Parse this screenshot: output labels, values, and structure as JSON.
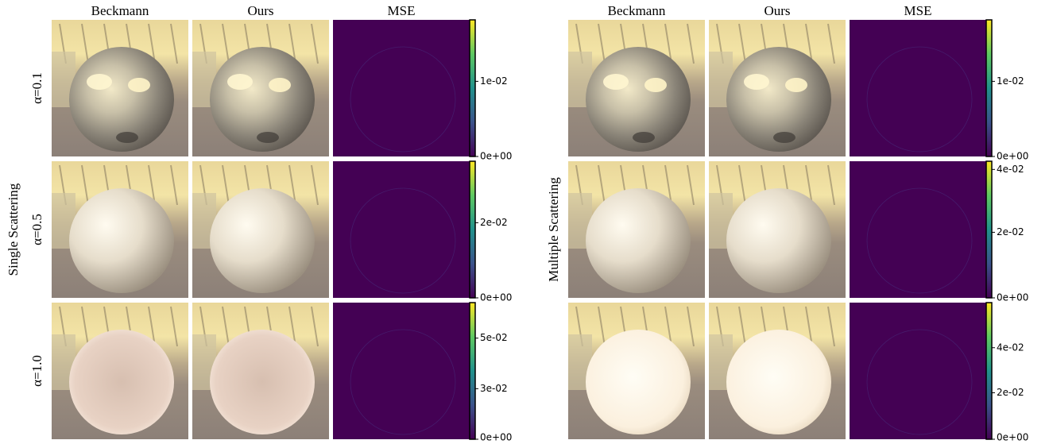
{
  "panels": [
    {
      "group_label": "Single Scattering",
      "columns": [
        "Beckmann",
        "Ours",
        "MSE"
      ],
      "row_labels": [
        "α=0.1",
        "α=0.5",
        "α=1.0"
      ],
      "rows": [
        {
          "colorbar_ticks": [
            "1e-02",
            "0e+00"
          ]
        },
        {
          "colorbar_ticks": [
            "2e-02",
            "0e+00"
          ]
        },
        {
          "colorbar_ticks": [
            "5e-02",
            "3e-02",
            "0e+00"
          ]
        }
      ]
    },
    {
      "group_label": "Multiple Scattering",
      "columns": [
        "Beckmann",
        "Ours",
        "MSE"
      ],
      "rows": [
        {
          "colorbar_ticks": [
            "1e-02",
            "0e+00"
          ]
        },
        {
          "colorbar_ticks": [
            "4e-02",
            "2e-02",
            "0e+00"
          ]
        },
        {
          "colorbar_ticks": [
            "4e-02",
            "2e-02",
            "0e+00"
          ]
        }
      ]
    }
  ]
}
